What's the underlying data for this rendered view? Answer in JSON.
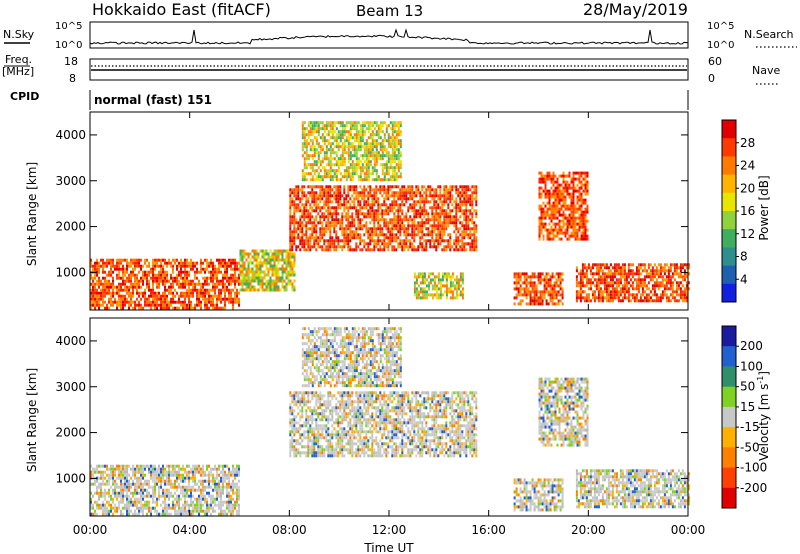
{
  "header": {
    "title": "Hokkaido East (fitACF)",
    "beam": "Beam 13",
    "date": "28/May/2019"
  },
  "summary_panels": {
    "nsky_label": "N.Sky",
    "nsky_ticks": [
      "10^5",
      "10^0"
    ],
    "nsearch_label": "N.Search",
    "nsearch_ticks": [
      "10^5",
      "10^0"
    ],
    "freq_label": "Freq.",
    "freq_unit": "[MHz]",
    "freq_ticks": [
      "18",
      "8"
    ],
    "nave_label": "Nave",
    "nave_ticks": [
      "60",
      "0"
    ],
    "cpid_label": "CPID",
    "cpid_text": "normal (fast) 151"
  },
  "chart_data": [
    {
      "type": "heatmap",
      "name": "power-panel",
      "ylabel": "Slant Range [km]",
      "x_ticks": [
        "00:00",
        "04:00",
        "08:00",
        "12:00",
        "16:00",
        "20:00",
        "00:00"
      ],
      "x_range_hours": [
        0,
        24
      ],
      "y_ticks": [
        1000,
        2000,
        3000,
        4000
      ],
      "y_range_km": [
        180,
        4500
      ],
      "colorbar": {
        "label": "Power [dB]",
        "ticks": [
          "28",
          "24",
          "20",
          "16",
          "12",
          "8",
          "4"
        ],
        "colors": [
          "#e00000",
          "#ff3a00",
          "#ff7a00",
          "#ffb400",
          "#e6e600",
          "#8fd23c",
          "#3fae5e",
          "#2f8f8f",
          "#1f5fb0",
          "#1020e0"
        ]
      },
      "echo_regions": [
        {
          "t0": 0.0,
          "t1": 6.0,
          "r0": 250,
          "r1": 1300,
          "level": "high"
        },
        {
          "t0": 6.0,
          "t1": 8.2,
          "r0": 600,
          "r1": 1500,
          "level": "mid"
        },
        {
          "t0": 8.0,
          "t1": 15.5,
          "r0": 1500,
          "r1": 2900,
          "level": "high"
        },
        {
          "t0": 8.5,
          "t1": 12.5,
          "r0": 3000,
          "r1": 4300,
          "level": "mid"
        },
        {
          "t0": 13.0,
          "t1": 15.0,
          "r0": 450,
          "r1": 1000,
          "level": "mid"
        },
        {
          "t0": 17.0,
          "t1": 19.0,
          "r0": 300,
          "r1": 1000,
          "level": "high"
        },
        {
          "t0": 18.0,
          "t1": 20.0,
          "r0": 1700,
          "r1": 3200,
          "level": "high"
        },
        {
          "t0": 19.5,
          "t1": 24.0,
          "r0": 350,
          "r1": 1200,
          "level": "high"
        }
      ]
    },
    {
      "type": "heatmap",
      "name": "velocity-panel",
      "ylabel": "Slant Range [km]",
      "xlabel": "Time UT",
      "x_ticks": [
        "00:00",
        "04:00",
        "08:00",
        "12:00",
        "16:00",
        "20:00",
        "00:00"
      ],
      "x_range_hours": [
        0,
        24
      ],
      "y_ticks": [
        1000,
        2000,
        3000,
        4000
      ],
      "y_range_km": [
        180,
        4500
      ],
      "colorbar": {
        "label": "Velocity [m s",
        "label_sup": "-1",
        "label_end": "]",
        "ticks": [
          "200",
          "100",
          "50",
          "15",
          "-15",
          "-50",
          "-100",
          "-200"
        ],
        "colors": [
          "#1a1aa0",
          "#2060d0",
          "#2f8f6a",
          "#7ed321",
          "#c8c8c8",
          "#ffb000",
          "#ff8000",
          "#ff4000",
          "#e00000"
        ]
      },
      "echo_regions": [
        {
          "t0": 0.0,
          "t1": 6.0,
          "r0": 250,
          "r1": 1300,
          "level": "gray"
        },
        {
          "t0": 8.0,
          "t1": 15.5,
          "r0": 1500,
          "r1": 2900,
          "level": "gray"
        },
        {
          "t0": 8.5,
          "t1": 12.5,
          "r0": 3000,
          "r1": 4300,
          "level": "gray"
        },
        {
          "t0": 17.0,
          "t1": 19.0,
          "r0": 300,
          "r1": 1000,
          "level": "gray"
        },
        {
          "t0": 18.0,
          "t1": 20.0,
          "r0": 1700,
          "r1": 3200,
          "level": "gray"
        },
        {
          "t0": 19.5,
          "t1": 24.0,
          "r0": 350,
          "r1": 1200,
          "level": "gray"
        }
      ]
    }
  ]
}
